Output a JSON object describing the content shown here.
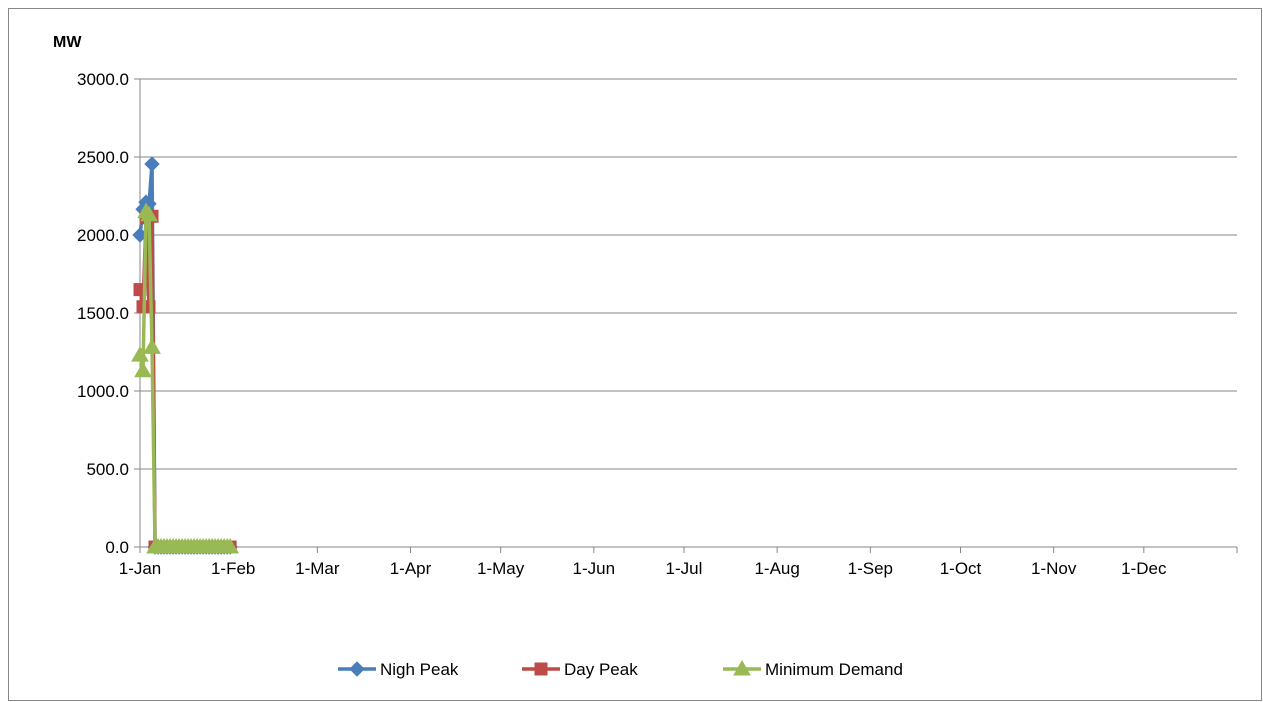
{
  "chart_data": {
    "type": "line",
    "title": "",
    "ylabel": "MW",
    "xlabel": "",
    "ylim": [
      0,
      3000
    ],
    "yticks": [
      "3000.0",
      "2500.0",
      "2000.0",
      "1500.0",
      "1000.0",
      "500.0",
      "0.0"
    ],
    "ytick_values": [
      3000,
      2500,
      2000,
      1500,
      1000,
      500,
      0
    ],
    "xlim": [
      "2013-01-01",
      "2013-12-31"
    ],
    "xticks": [
      "1-Jan",
      "1-Feb",
      "1-Mar",
      "1-Apr",
      "1-May",
      "1-Jun",
      "1-Jul",
      "1-Aug",
      "1-Sep",
      "1-Oct",
      "1-Nov",
      "1-Dec"
    ],
    "xtick_dates": [
      "2013-01-01",
      "2013-02-01",
      "2013-03-01",
      "2013-04-01",
      "2013-05-01",
      "2013-06-01",
      "2013-07-01",
      "2013-08-01",
      "2013-09-01",
      "2013-10-01",
      "2013-11-01",
      "2013-12-01"
    ],
    "grid": "horizontal",
    "legend_position": "bottom",
    "series": [
      {
        "name": "Nigh Peak",
        "color": "#4A7EBB",
        "marker": "diamond",
        "x": [
          "2013-01-01",
          "2013-01-02",
          "2013-01-03",
          "2013-01-04",
          "2013-01-05",
          "2013-01-06",
          "2013-01-07",
          "2013-01-08",
          "2013-01-09",
          "2013-01-10",
          "2013-01-11",
          "2013-01-12",
          "2013-01-13",
          "2013-01-14",
          "2013-01-15",
          "2013-01-16",
          "2013-01-17",
          "2013-01-18",
          "2013-01-19",
          "2013-01-20",
          "2013-01-21",
          "2013-01-22",
          "2013-01-23",
          "2013-01-24",
          "2013-01-25",
          "2013-01-26",
          "2013-01-27",
          "2013-01-28",
          "2013-01-29",
          "2013-01-30",
          "2013-01-31"
        ],
        "values": [
          2000,
          2165,
          2210,
          2200,
          2455,
          0,
          0,
          0,
          0,
          0,
          0,
          0,
          0,
          0,
          0,
          0,
          0,
          0,
          0,
          0,
          0,
          0,
          0,
          0,
          0,
          0,
          0,
          0,
          0,
          0,
          0
        ]
      },
      {
        "name": "Day Peak",
        "color": "#BE4B48",
        "marker": "square",
        "x": [
          "2013-01-01",
          "2013-01-02",
          "2013-01-03",
          "2013-01-04",
          "2013-01-05",
          "2013-01-06",
          "2013-01-07",
          "2013-01-08",
          "2013-01-09",
          "2013-01-10",
          "2013-01-11",
          "2013-01-12",
          "2013-01-13",
          "2013-01-14",
          "2013-01-15",
          "2013-01-16",
          "2013-01-17",
          "2013-01-18",
          "2013-01-19",
          "2013-01-20",
          "2013-01-21",
          "2013-01-22",
          "2013-01-23",
          "2013-01-24",
          "2013-01-25",
          "2013-01-26",
          "2013-01-27",
          "2013-01-28",
          "2013-01-29",
          "2013-01-30",
          "2013-01-31"
        ],
        "values": [
          1650,
          1540,
          2110,
          1540,
          2120,
          0,
          0,
          0,
          0,
          0,
          0,
          0,
          0,
          0,
          0,
          0,
          0,
          0,
          0,
          0,
          0,
          0,
          0,
          0,
          0,
          0,
          0,
          0,
          0,
          0,
          0
        ]
      },
      {
        "name": "Minimum Demand",
        "color": "#98B954",
        "marker": "triangle",
        "x": [
          "2013-01-01",
          "2013-01-02",
          "2013-01-03",
          "2013-01-04",
          "2013-01-05",
          "2013-01-06",
          "2013-01-07",
          "2013-01-08",
          "2013-01-09",
          "2013-01-10",
          "2013-01-11",
          "2013-01-12",
          "2013-01-13",
          "2013-01-14",
          "2013-01-15",
          "2013-01-16",
          "2013-01-17",
          "2013-01-18",
          "2013-01-19",
          "2013-01-20",
          "2013-01-21",
          "2013-01-22",
          "2013-01-23",
          "2013-01-24",
          "2013-01-25",
          "2013-01-26",
          "2013-01-27",
          "2013-01-28",
          "2013-01-29",
          "2013-01-30",
          "2013-01-31"
        ],
        "values": [
          1230,
          1130,
          2150,
          2130,
          1280,
          0,
          0,
          0,
          0,
          0,
          0,
          0,
          0,
          0,
          0,
          0,
          0,
          0,
          0,
          0,
          0,
          0,
          0,
          0,
          0,
          0,
          0,
          0,
          0,
          0,
          0
        ]
      }
    ]
  }
}
